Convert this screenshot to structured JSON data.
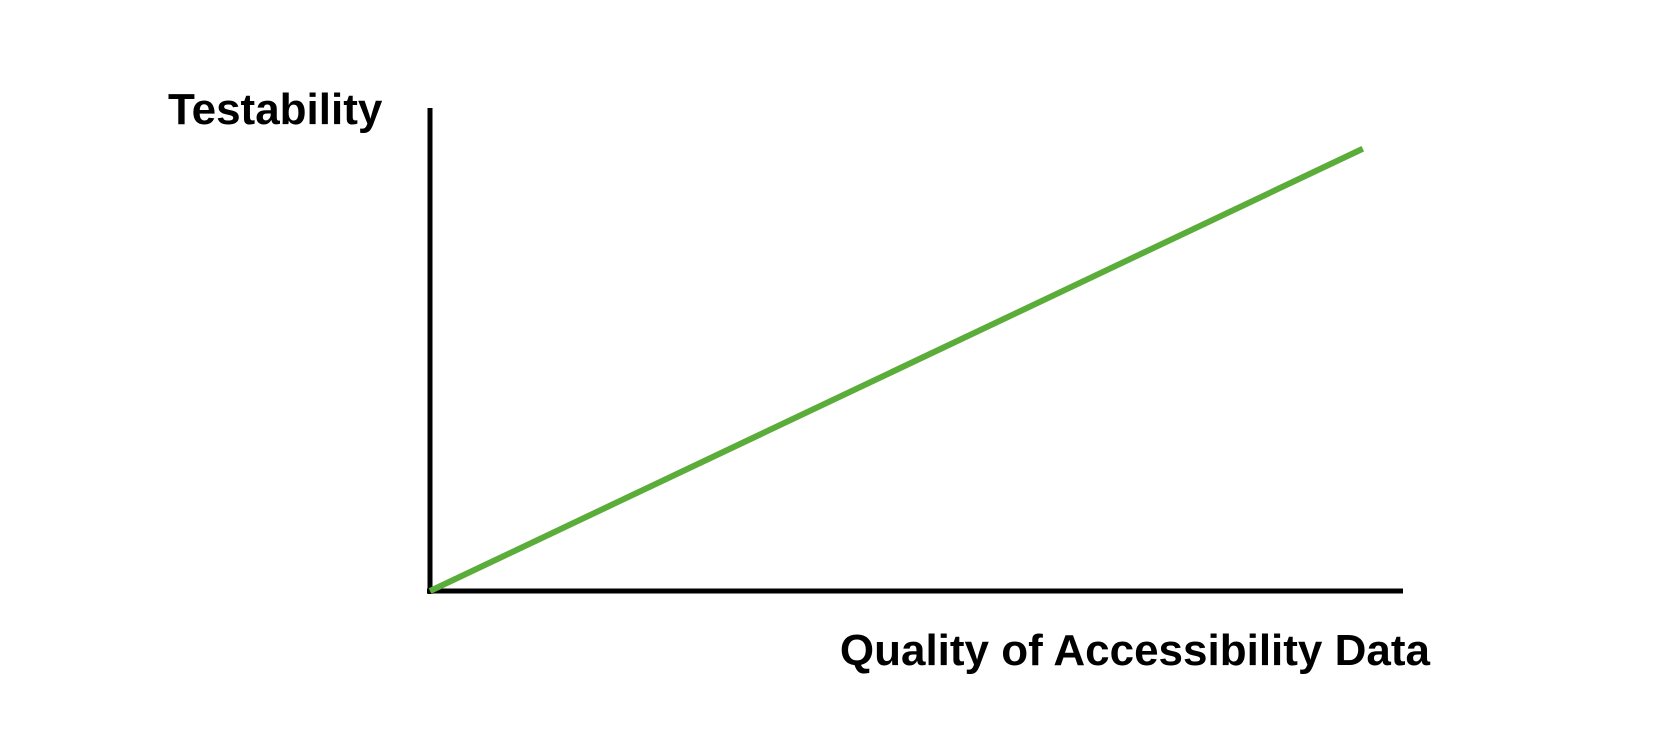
{
  "chart_data": {
    "type": "line",
    "title": "",
    "xlabel": "Quality of Accessibility Data",
    "ylabel": "Testability",
    "xlim": [
      0,
      1
    ],
    "ylim": [
      0,
      1
    ],
    "grid": false,
    "ticks": false,
    "series": [
      {
        "color": "#5BAD3A",
        "x": [
          0,
          0.88
        ],
        "y": [
          0,
          0.91
        ]
      }
    ]
  },
  "colors": {
    "axis": "#000000",
    "background": "#ffffff"
  }
}
